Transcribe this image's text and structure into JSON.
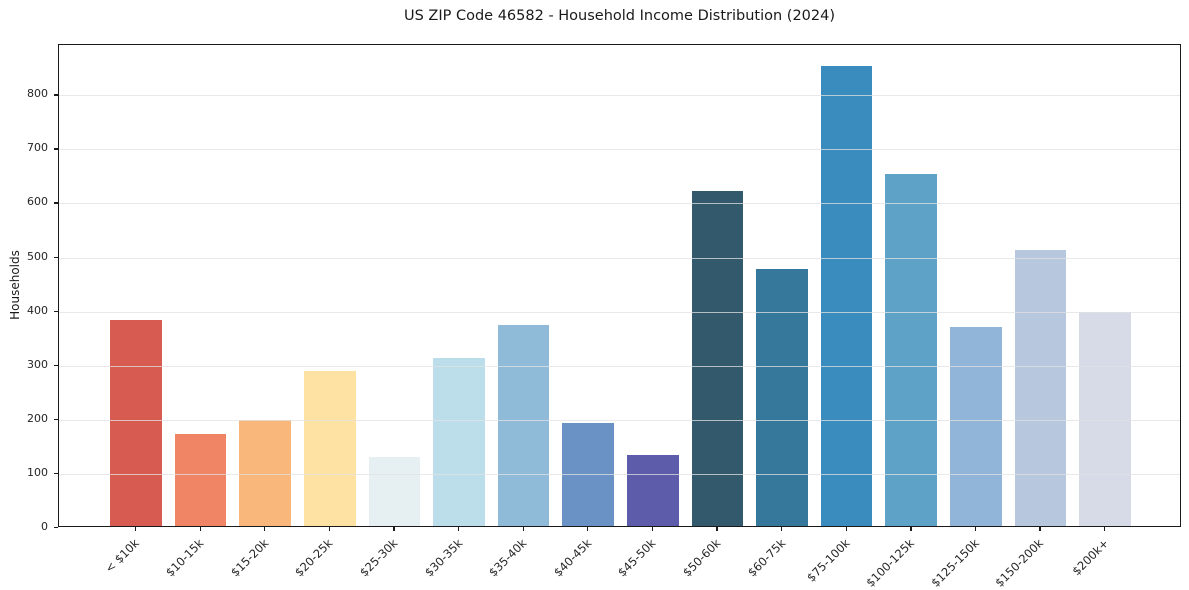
{
  "chart_data": {
    "type": "bar",
    "title": "US ZIP Code 46582 - Household Income Distribution (2024)",
    "xlabel": "",
    "ylabel": "Households",
    "categories": [
      "< $10k",
      "$10-15k",
      "$15-20k",
      "$20-25k",
      "$25-30k",
      "$30-35k",
      "$35-40k",
      "$40-45k",
      "$45-50k",
      "$50-60k",
      "$60-75k",
      "$75-100k",
      "$100-125k",
      "$125-150k",
      "$150-200k",
      "$200k+"
    ],
    "values": [
      381,
      170,
      196,
      286,
      127,
      310,
      371,
      191,
      131,
      620,
      476,
      851,
      650,
      368,
      511,
      396
    ],
    "bar_colors": [
      "#d75b50",
      "#f08566",
      "#f9b77c",
      "#fde2a3",
      "#e6f0f2",
      "#bcdeea",
      "#8fbbd9",
      "#6b92c5",
      "#5c5caa",
      "#33596d",
      "#36789b",
      "#3a8cbe",
      "#5ea3c7",
      "#90b5d8",
      "#b6c7de",
      "#d7dae7"
    ],
    "yticks": [
      0,
      100,
      200,
      300,
      400,
      500,
      600,
      700,
      800
    ],
    "ylim": [
      0,
      893
    ],
    "grid": "horizontal",
    "legend": "none",
    "colors": {
      "background": "#ffffff",
      "spine": "#1a1a1a",
      "gridline": "#e6e6e6",
      "text": "#262626"
    }
  }
}
